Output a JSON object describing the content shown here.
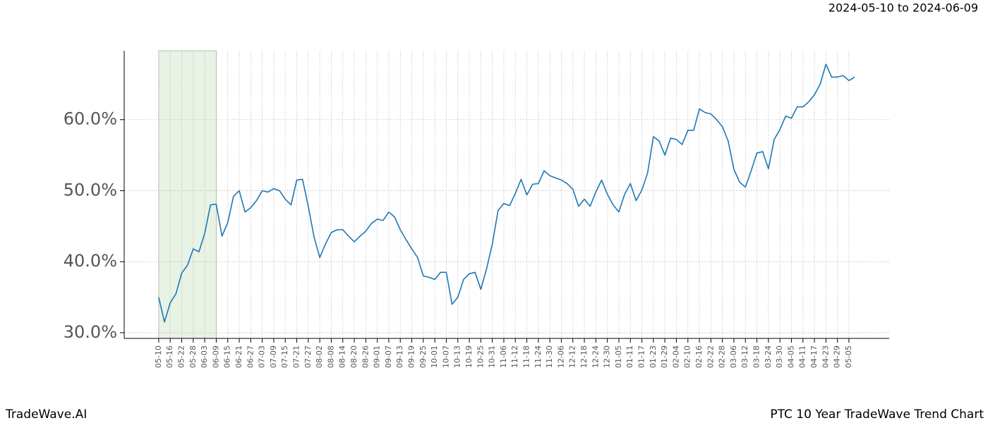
{
  "chart_data": {
    "type": "line",
    "title": "2024-05-10 to 2024-06-09",
    "footer_left": "TradeWave.AI",
    "footer_right": "PTC 10 Year TradeWave Trend Chart",
    "color": "#1f77b4",
    "highlight": {
      "start": "05-10",
      "end": "06-09",
      "color": "#d9ead3"
    },
    "grid": true,
    "ylim": [
      29.2,
      69.7
    ],
    "yticks": [
      {
        "value": 30,
        "label": "30.0%"
      },
      {
        "value": 40,
        "label": "40.0%"
      },
      {
        "value": 50,
        "label": "50.0%"
      },
      {
        "value": 60,
        "label": "60.0%"
      }
    ],
    "xticks": [
      "05-10",
      "05-16",
      "05-22",
      "05-28",
      "06-03",
      "06-09",
      "06-15",
      "06-21",
      "06-27",
      "07-03",
      "07-09",
      "07-15",
      "07-21",
      "07-27",
      "08-02",
      "08-08",
      "08-14",
      "08-20",
      "08-26",
      "09-01",
      "09-07",
      "09-13",
      "09-19",
      "09-25",
      "10-01",
      "10-07",
      "10-13",
      "10-19",
      "10-25",
      "10-31",
      "11-06",
      "11-12",
      "11-18",
      "11-24",
      "11-30",
      "12-06",
      "12-12",
      "12-18",
      "12-24",
      "12-30",
      "01-05",
      "01-11",
      "01-17",
      "01-23",
      "01-29",
      "02-04",
      "02-10",
      "02-16",
      "02-22",
      "02-28",
      "03-06",
      "03-12",
      "03-18",
      "03-24",
      "03-30",
      "04-05",
      "04-11",
      "04-17",
      "04-23",
      "04-29",
      "05-05"
    ],
    "x": [
      "05-10",
      "05-13",
      "05-16",
      "05-19",
      "05-22",
      "05-25",
      "05-28",
      "05-31",
      "06-03",
      "06-06",
      "06-09",
      "06-12",
      "06-15",
      "06-18",
      "06-21",
      "06-24",
      "06-27",
      "06-30",
      "07-03",
      "07-06",
      "07-09",
      "07-12",
      "07-15",
      "07-18",
      "07-21",
      "07-24",
      "07-27",
      "07-30",
      "08-02",
      "08-05",
      "08-08",
      "08-11",
      "08-14",
      "08-17",
      "08-20",
      "08-23",
      "08-26",
      "08-29",
      "09-01",
      "09-04",
      "09-07",
      "09-10",
      "09-13",
      "09-16",
      "09-19",
      "09-22",
      "09-25",
      "09-28",
      "10-01",
      "10-04",
      "10-07",
      "10-10",
      "10-13",
      "10-16",
      "10-19",
      "10-22",
      "10-25",
      "10-28",
      "10-31",
      "11-03",
      "11-06",
      "11-09",
      "11-12",
      "11-15",
      "11-18",
      "11-21",
      "11-24",
      "11-27",
      "11-30",
      "12-03",
      "12-06",
      "12-09",
      "12-12",
      "12-15",
      "12-18",
      "12-21",
      "12-24",
      "12-27",
      "12-30",
      "01-02",
      "01-05",
      "01-08",
      "01-11",
      "01-14",
      "01-17",
      "01-20",
      "01-23",
      "01-26",
      "01-29",
      "02-01",
      "02-04",
      "02-07",
      "02-10",
      "02-13",
      "02-16",
      "02-19",
      "02-22",
      "02-25",
      "02-28",
      "03-03",
      "03-06",
      "03-09",
      "03-12",
      "03-15",
      "03-18",
      "03-21",
      "03-24",
      "03-27",
      "03-30",
      "04-02",
      "04-05",
      "04-08",
      "04-11",
      "04-14",
      "04-17",
      "04-20",
      "04-23",
      "04-26",
      "04-29",
      "05-02",
      "05-05",
      "05-08"
    ],
    "values": [
      35.0,
      31.5,
      34.2,
      35.5,
      38.4,
      39.5,
      41.8,
      41.4,
      44.0,
      48.0,
      48.1,
      43.6,
      45.5,
      49.2,
      50.0,
      47.0,
      47.6,
      48.6,
      50.0,
      49.8,
      50.3,
      50.0,
      48.8,
      48.0,
      51.5,
      51.6,
      47.8,
      43.5,
      40.6,
      42.5,
      44.1,
      44.5,
      44.5,
      43.6,
      42.8,
      43.6,
      44.3,
      45.4,
      46.0,
      45.8,
      47.0,
      46.3,
      44.5,
      43.1,
      41.8,
      40.6,
      38.0,
      37.8,
      37.5,
      38.5,
      38.5,
      34.0,
      35.0,
      37.5,
      38.3,
      38.5,
      36.1,
      39.0,
      42.5,
      47.2,
      48.2,
      47.9,
      49.6,
      51.6,
      49.4,
      50.9,
      51.0,
      52.8,
      52.1,
      51.8,
      51.5,
      51.0,
      50.2,
      47.8,
      48.8,
      47.8,
      49.8,
      51.5,
      49.5,
      48.0,
      47.0,
      49.5,
      51.0,
      48.6,
      50.1,
      52.5,
      57.6,
      57.0,
      55.0,
      57.4,
      57.2,
      56.5,
      58.5,
      58.5,
      61.5,
      61.0,
      60.8,
      60.0,
      59.0,
      57.0,
      53.0,
      51.2,
      50.5,
      52.8,
      55.3,
      55.5,
      53.1,
      57.2,
      58.6,
      60.5,
      60.2,
      61.8,
      61.8,
      62.5,
      63.5,
      65.0,
      67.8,
      66.0,
      66.0,
      66.2,
      65.5,
      66.0
    ]
  }
}
